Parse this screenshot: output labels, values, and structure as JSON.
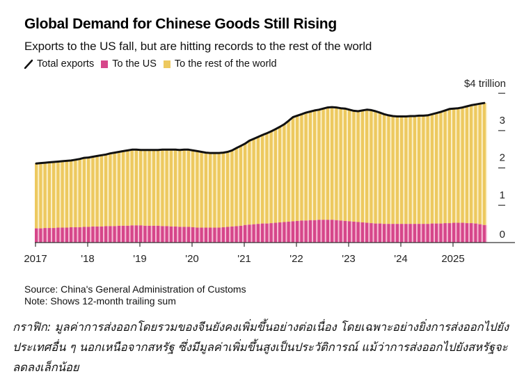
{
  "header": {
    "title": "Global Demand for Chinese Goods Still Rising",
    "subtitle": "Exports to the US fall, but are hitting records to the rest of the world"
  },
  "legend": [
    {
      "label": "Total exports",
      "icon": "line-icon",
      "color": "#111111"
    },
    {
      "label": "To the US",
      "icon": "square-icon",
      "color": "#D6468A"
    },
    {
      "label": "To the rest of the world",
      "icon": "square-icon",
      "color": "#EDC95F"
    }
  ],
  "colors": {
    "us": "#D6468A",
    "us_gap": "#F5BCD6",
    "row": "#EDC95F",
    "row_gap": "#FBF0C9",
    "line": "#111111",
    "axis": "#333333"
  },
  "chart_data": {
    "type": "bar",
    "stacked": true,
    "title": "Global Demand for Chinese Goods Still Rising",
    "subtitle": "Exports to the US fall, but are hitting records to the rest of the world",
    "xlabel": "",
    "ylabel": "$ trillion",
    "ylim": [
      0,
      4
    ],
    "y_ticks": [
      0,
      1,
      2,
      3,
      4
    ],
    "y_tick_labels": [
      "0",
      "1",
      "2",
      "3",
      "$4 trillion"
    ],
    "x_start": "2017-01",
    "x_end": "2025-08",
    "frequency": "monthly",
    "x_ticks": [
      {
        "month_index": 0,
        "label": "2017"
      },
      {
        "month_index": 12,
        "label": "'18"
      },
      {
        "month_index": 24,
        "label": "'19"
      },
      {
        "month_index": 36,
        "label": "'20"
      },
      {
        "month_index": 48,
        "label": "'21"
      },
      {
        "month_index": 60,
        "label": "'22"
      },
      {
        "month_index": 72,
        "label": "'23"
      },
      {
        "month_index": 84,
        "label": "'24"
      },
      {
        "month_index": 96,
        "label": "2025"
      }
    ],
    "grid": false,
    "legend_position": "top-left",
    "series": [
      {
        "name": "Total exports",
        "type": "line",
        "values": [
          2.12,
          2.13,
          2.14,
          2.15,
          2.16,
          2.17,
          2.18,
          2.19,
          2.2,
          2.22,
          2.24,
          2.27,
          2.28,
          2.3,
          2.32,
          2.34,
          2.36,
          2.39,
          2.41,
          2.43,
          2.45,
          2.47,
          2.49,
          2.49,
          2.48,
          2.48,
          2.48,
          2.48,
          2.48,
          2.49,
          2.49,
          2.49,
          2.49,
          2.48,
          2.49,
          2.49,
          2.47,
          2.45,
          2.43,
          2.41,
          2.4,
          2.4,
          2.4,
          2.41,
          2.43,
          2.47,
          2.53,
          2.59,
          2.65,
          2.73,
          2.78,
          2.83,
          2.88,
          2.93,
          2.98,
          3.04,
          3.1,
          3.17,
          3.26,
          3.36,
          3.4,
          3.44,
          3.48,
          3.51,
          3.54,
          3.56,
          3.59,
          3.62,
          3.63,
          3.62,
          3.6,
          3.59,
          3.56,
          3.53,
          3.52,
          3.54,
          3.56,
          3.55,
          3.52,
          3.48,
          3.44,
          3.41,
          3.39,
          3.38,
          3.38,
          3.38,
          3.39,
          3.39,
          3.4,
          3.4,
          3.41,
          3.44,
          3.47,
          3.5,
          3.54,
          3.58,
          3.59,
          3.6,
          3.62,
          3.65,
          3.68,
          3.7,
          3.72,
          3.74
        ]
      },
      {
        "name": "To the US",
        "type": "bar",
        "values": [
          0.38,
          0.38,
          0.39,
          0.39,
          0.39,
          0.4,
          0.4,
          0.4,
          0.41,
          0.41,
          0.41,
          0.42,
          0.42,
          0.43,
          0.43,
          0.43,
          0.44,
          0.44,
          0.44,
          0.45,
          0.45,
          0.45,
          0.46,
          0.46,
          0.46,
          0.45,
          0.45,
          0.45,
          0.45,
          0.44,
          0.44,
          0.43,
          0.43,
          0.42,
          0.42,
          0.42,
          0.41,
          0.4,
          0.4,
          0.4,
          0.4,
          0.4,
          0.4,
          0.41,
          0.42,
          0.43,
          0.44,
          0.45,
          0.47,
          0.48,
          0.49,
          0.5,
          0.51,
          0.51,
          0.52,
          0.53,
          0.54,
          0.55,
          0.56,
          0.57,
          0.58,
          0.59,
          0.59,
          0.6,
          0.6,
          0.61,
          0.61,
          0.61,
          0.61,
          0.6,
          0.59,
          0.58,
          0.57,
          0.56,
          0.55,
          0.54,
          0.53,
          0.52,
          0.51,
          0.51,
          0.5,
          0.5,
          0.5,
          0.5,
          0.5,
          0.5,
          0.5,
          0.5,
          0.5,
          0.5,
          0.5,
          0.51,
          0.51,
          0.51,
          0.52,
          0.52,
          0.53,
          0.53,
          0.53,
          0.52,
          0.52,
          0.51,
          0.49,
          0.47
        ]
      },
      {
        "name": "To the rest of the world",
        "type": "bar",
        "derived_from": "Total exports minus To the US"
      }
    ]
  },
  "footer": {
    "source": "Source: China's General Administration of Customs",
    "note": "Note: Shows 12-month trailing sum"
  },
  "caption": "กราฟิก: มูลค่าการส่งออกโดยรวมของจีนยังคงเพิ่มขึ้นอย่างต่อเนื่อง โดยเฉพาะอย่างยิ่งการส่งออกไปยังประเทศอื่น ๆ นอกเหนือจากสหรัฐ ซึ่งมีมูลค่าเพิ่มขึ้นสูงเป็นประวัติการณ์ แม้ว่าการส่งออกไปยังสหรัฐจะลดลงเล็กน้อย"
}
